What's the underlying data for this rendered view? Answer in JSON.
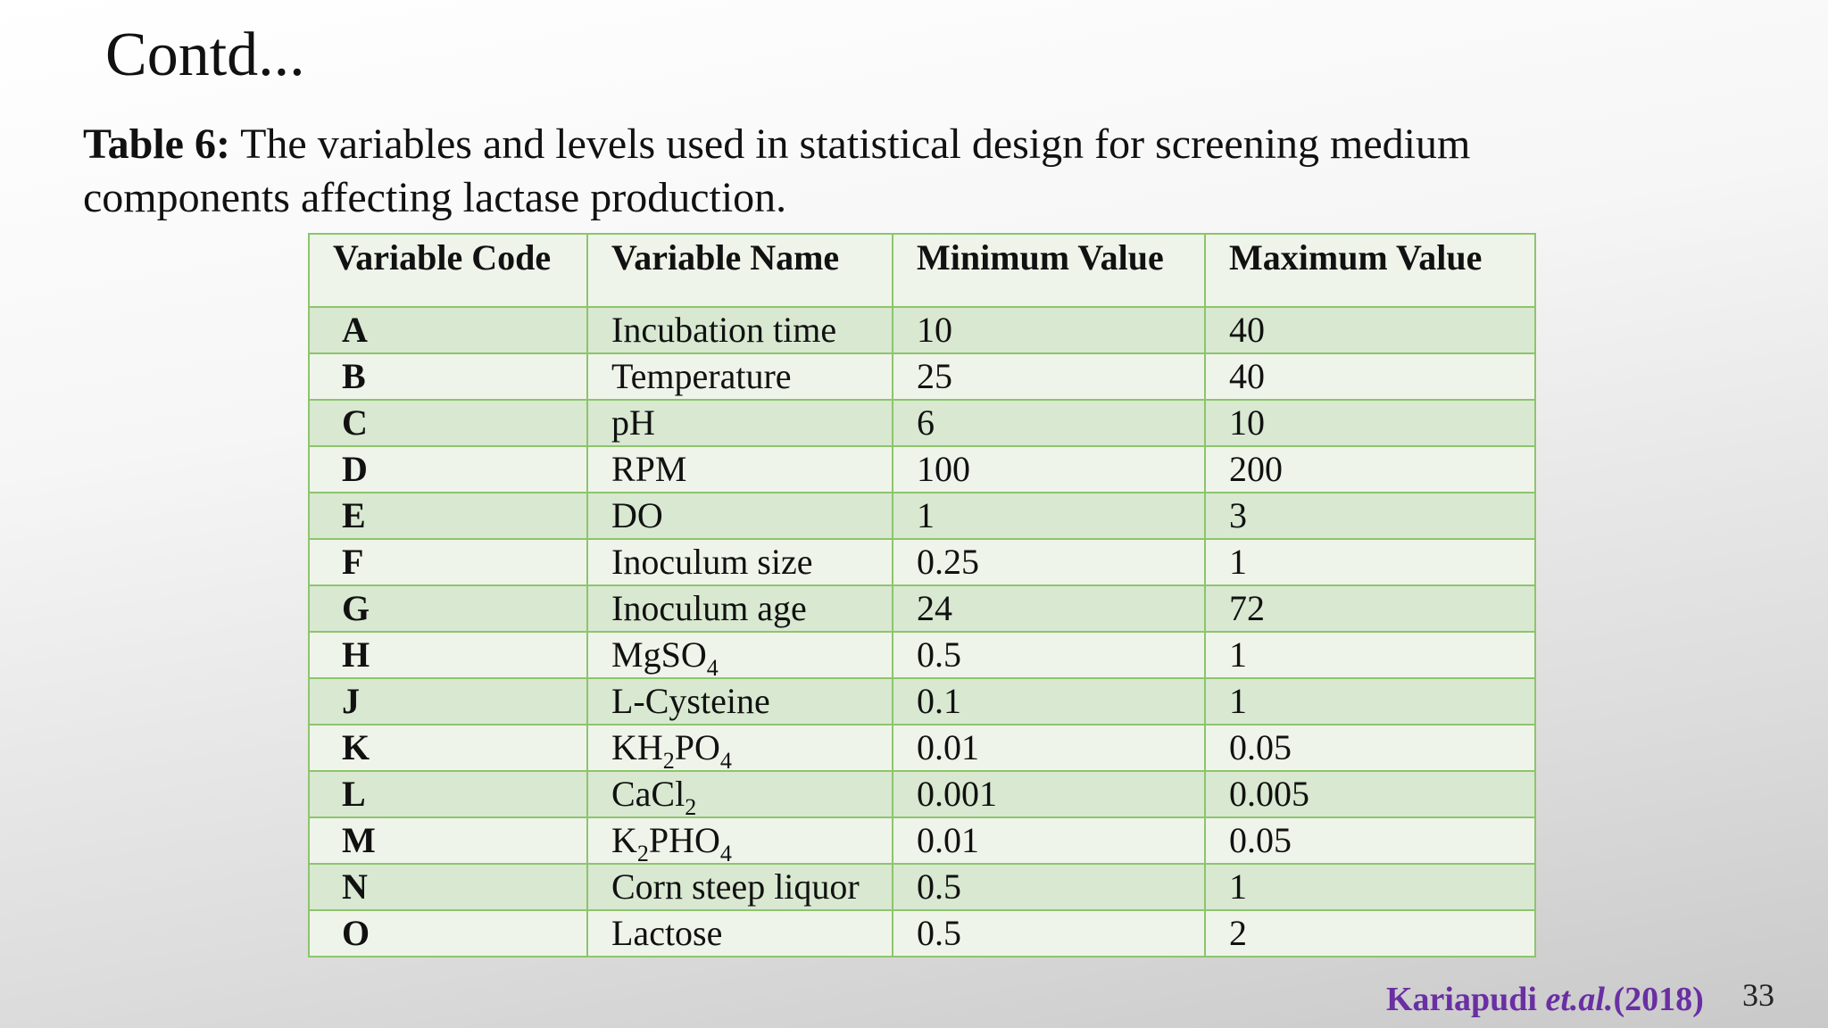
{
  "slide": {
    "title": "Contd...",
    "caption": {
      "label": "Table 6:",
      "text": " The variables and levels used in statistical design for screening medium components affecting lactase production."
    },
    "table": {
      "header": [
        "Variable Code",
        "Variable Name",
        "Minimum Value",
        "Maximum Value"
      ],
      "rows": [
        {
          "code": "A",
          "name": [
            "Incubation time"
          ],
          "min": "10",
          "max": "40"
        },
        {
          "code": "B",
          "name": [
            "Temperature"
          ],
          "min": "25",
          "max": "40"
        },
        {
          "code": "C",
          "name": [
            "pH"
          ],
          "min": "6",
          "max": "10"
        },
        {
          "code": "D",
          "name": [
            "RPM"
          ],
          "min": "100",
          "max": "200"
        },
        {
          "code": "E",
          "name": [
            "DO"
          ],
          "min": "1",
          "max": "3"
        },
        {
          "code": "F",
          "name": [
            "Inoculum size"
          ],
          "min": "0.25",
          "max": "1"
        },
        {
          "code": "G",
          "name": [
            "Inoculum age"
          ],
          "min": "24",
          "max": "72"
        },
        {
          "code": "H",
          "name": [
            "MgSO",
            "4"
          ],
          "min": "0.5",
          "max": "1"
        },
        {
          "code": "J",
          "name": [
            "L-Cysteine"
          ],
          "min": "0.1",
          "max": "1"
        },
        {
          "code": "K",
          "name": [
            "KH",
            "2",
            "PO",
            "4"
          ],
          "min": "0.01",
          "max": "0.05"
        },
        {
          "code": "L",
          "name": [
            "CaCl",
            "2"
          ],
          "min": "0.001",
          "max": "0.005"
        },
        {
          "code": "M",
          "name": [
            "K",
            "2",
            "PHO",
            "4"
          ],
          "min": "0.01",
          "max": "0.05"
        },
        {
          "code": "N",
          "name": [
            "Corn steep liquor"
          ],
          "min": "0.5",
          "max": "1"
        },
        {
          "code": "O",
          "name": [
            "Lactose"
          ],
          "min": "0.5",
          "max": "2"
        }
      ]
    },
    "citation": {
      "author": "Kariapudi ",
      "etal": "et.al.",
      "year": "(2018)"
    },
    "page_number": "33"
  }
}
